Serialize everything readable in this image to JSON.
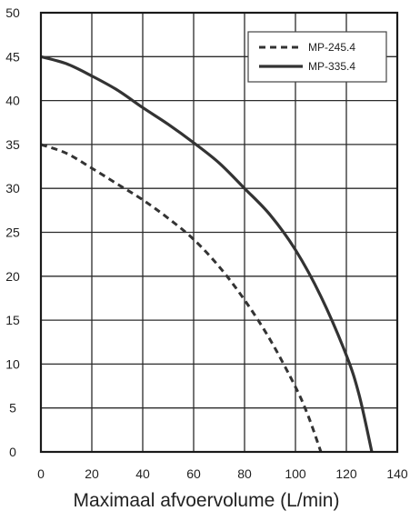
{
  "chart_data": {
    "type": "line",
    "title": "",
    "xlabel": "Maximaal afvoervolume (L/min)",
    "ylabel": "",
    "xlim": [
      0,
      140
    ],
    "ylim": [
      0,
      50
    ],
    "xticks": [
      0,
      20,
      40,
      60,
      80,
      100,
      120,
      140
    ],
    "yticks": [
      0,
      5,
      10,
      15,
      20,
      25,
      30,
      35,
      40,
      45,
      50
    ],
    "grid": true,
    "legend_position": "top-right",
    "series": [
      {
        "name": "MP-245.4",
        "style": "dashed",
        "color": "#333333",
        "x": [
          0,
          10,
          20,
          30,
          40,
          50,
          60,
          70,
          80,
          90,
          100,
          105,
          110
        ],
        "y": [
          35,
          34,
          32.3,
          30.5,
          28.7,
          26.6,
          24.2,
          21.1,
          17.3,
          12.8,
          7.4,
          4.1,
          0
        ]
      },
      {
        "name": "MP-335.4",
        "style": "solid",
        "color": "#333333",
        "x": [
          0,
          10,
          20,
          30,
          40,
          50,
          60,
          70,
          80,
          90,
          100,
          110,
          120,
          125,
          130
        ],
        "y": [
          45,
          44.2,
          42.8,
          41.2,
          39.2,
          37.3,
          35.2,
          32.9,
          30,
          27,
          23,
          17.7,
          11,
          6.5,
          0
        ]
      }
    ]
  }
}
